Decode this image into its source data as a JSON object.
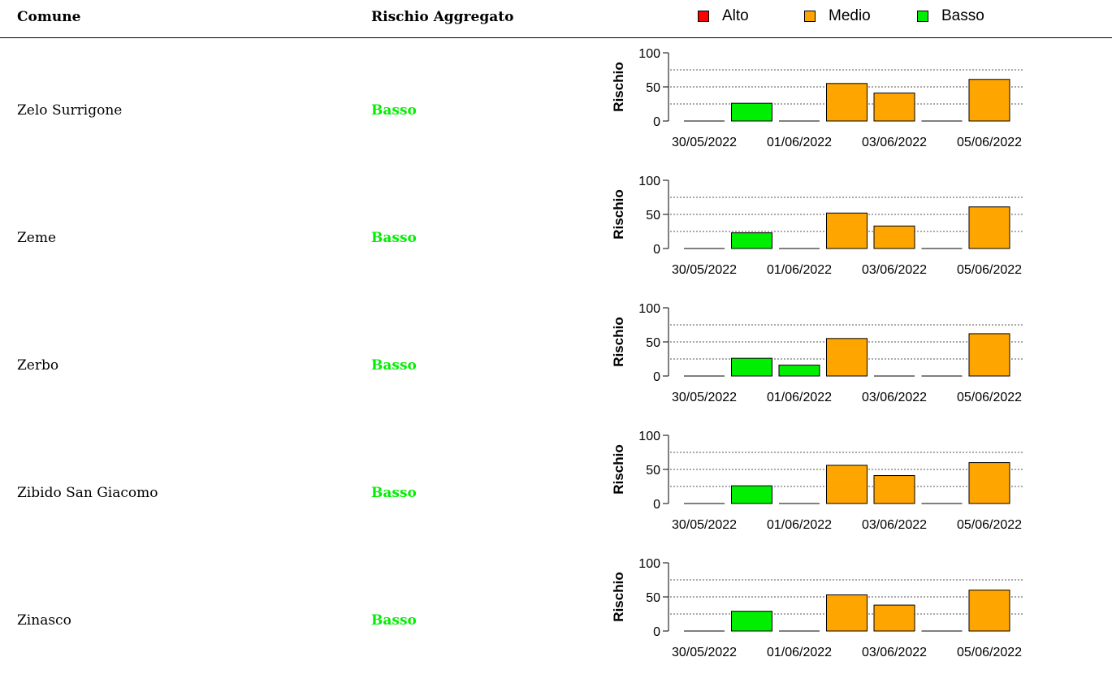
{
  "header": {
    "comune_label": "Comune",
    "rischio_label": "Rischio Aggregato"
  },
  "legend": [
    {
      "label": "Alto",
      "color": "#ff0000"
    },
    {
      "label": "Medio",
      "color": "#ffa500"
    },
    {
      "label": "Basso",
      "color": "#00ee00"
    }
  ],
  "colors": {
    "Alto": "#ff0000",
    "Medio": "#ffa500",
    "Basso": "#00ee00"
  },
  "rows": [
    {
      "comune": "Zelo Surrigone",
      "rischio": "Basso"
    },
    {
      "comune": "Zeme",
      "rischio": "Basso"
    },
    {
      "comune": "Zerbo",
      "rischio": "Basso"
    },
    {
      "comune": "Zibido San Giacomo",
      "rischio": "Basso"
    },
    {
      "comune": "Zinasco",
      "rischio": "Basso"
    }
  ],
  "chart_data": [
    {
      "type": "bar",
      "ylabel": "Rischio",
      "ylim": [
        0,
        100
      ],
      "yticks": [
        0,
        50,
        100
      ],
      "gridlines": [
        25,
        50,
        75
      ],
      "x_tick_labels": [
        "30/05/2022",
        "01/06/2022",
        "03/06/2022",
        "05/06/2022"
      ],
      "categories": [
        "30/05/2022",
        "31/05/2022",
        "01/06/2022",
        "02/06/2022",
        "03/06/2022",
        "04/06/2022",
        "05/06/2022"
      ],
      "values": [
        0,
        26,
        0,
        55,
        41,
        0,
        61
      ],
      "levels": [
        "Basso",
        "Basso",
        "Basso",
        "Medio",
        "Medio",
        "Basso",
        "Medio"
      ]
    },
    {
      "type": "bar",
      "ylabel": "Rischio",
      "ylim": [
        0,
        100
      ],
      "yticks": [
        0,
        50,
        100
      ],
      "gridlines": [
        25,
        50,
        75
      ],
      "x_tick_labels": [
        "30/05/2022",
        "01/06/2022",
        "03/06/2022",
        "05/06/2022"
      ],
      "categories": [
        "30/05/2022",
        "31/05/2022",
        "01/06/2022",
        "02/06/2022",
        "03/06/2022",
        "04/06/2022",
        "05/06/2022"
      ],
      "values": [
        0,
        23,
        0,
        52,
        33,
        0,
        61
      ],
      "levels": [
        "Basso",
        "Basso",
        "Basso",
        "Medio",
        "Medio",
        "Basso",
        "Medio"
      ]
    },
    {
      "type": "bar",
      "ylabel": "Rischio",
      "ylim": [
        0,
        100
      ],
      "yticks": [
        0,
        50,
        100
      ],
      "gridlines": [
        25,
        50,
        75
      ],
      "x_tick_labels": [
        "30/05/2022",
        "01/06/2022",
        "03/06/2022",
        "05/06/2022"
      ],
      "categories": [
        "30/05/2022",
        "31/05/2022",
        "01/06/2022",
        "02/06/2022",
        "03/06/2022",
        "04/06/2022",
        "05/06/2022"
      ],
      "values": [
        0,
        26,
        16,
        55,
        0,
        0,
        62
      ],
      "levels": [
        "Basso",
        "Basso",
        "Basso",
        "Medio",
        "Basso",
        "Basso",
        "Medio"
      ]
    },
    {
      "type": "bar",
      "ylabel": "Rischio",
      "ylim": [
        0,
        100
      ],
      "yticks": [
        0,
        50,
        100
      ],
      "gridlines": [
        25,
        50,
        75
      ],
      "x_tick_labels": [
        "30/05/2022",
        "01/06/2022",
        "03/06/2022",
        "05/06/2022"
      ],
      "categories": [
        "30/05/2022",
        "31/05/2022",
        "01/06/2022",
        "02/06/2022",
        "03/06/2022",
        "04/06/2022",
        "05/06/2022"
      ],
      "values": [
        0,
        26,
        0,
        56,
        41,
        0,
        60
      ],
      "levels": [
        "Basso",
        "Basso",
        "Basso",
        "Medio",
        "Medio",
        "Basso",
        "Medio"
      ]
    },
    {
      "type": "bar",
      "ylabel": "Rischio",
      "ylim": [
        0,
        100
      ],
      "yticks": [
        0,
        50,
        100
      ],
      "gridlines": [
        25,
        50,
        75
      ],
      "x_tick_labels": [
        "30/05/2022",
        "01/06/2022",
        "03/06/2022",
        "05/06/2022"
      ],
      "categories": [
        "30/05/2022",
        "31/05/2022",
        "01/06/2022",
        "02/06/2022",
        "03/06/2022",
        "04/06/2022",
        "05/06/2022"
      ],
      "values": [
        0,
        29,
        0,
        53,
        38,
        0,
        60
      ],
      "levels": [
        "Basso",
        "Basso",
        "Basso",
        "Medio",
        "Medio",
        "Basso",
        "Medio"
      ]
    }
  ]
}
